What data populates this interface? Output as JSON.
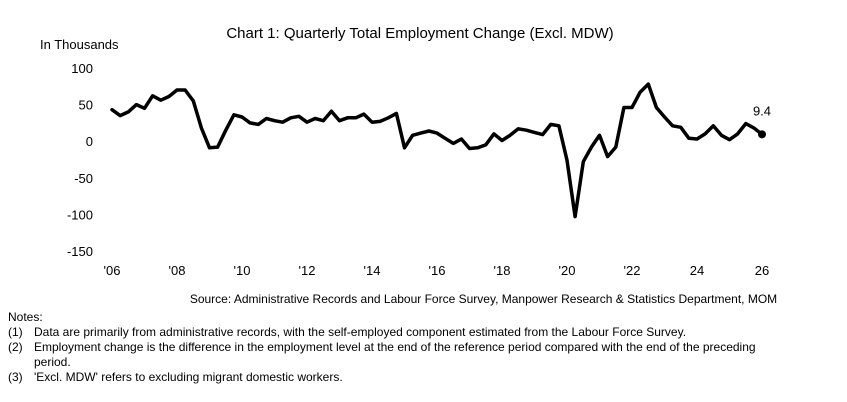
{
  "chart_data": {
    "type": "line",
    "title": "Chart 1: Quarterly Total Employment Change (Excl. MDW)",
    "ylabel": "In Thousands",
    "xlabel": "",
    "ylim": [
      -150,
      100
    ],
    "y_ticks": [
      100,
      50,
      0,
      -50,
      -100,
      -150
    ],
    "y_tick_labels": [
      "100",
      "50",
      "0",
      "-50",
      "-100",
      "-150"
    ],
    "x_tick_labels": [
      "'06",
      "'08",
      "'10",
      "'12",
      "'14",
      "'16",
      "'18",
      "'20",
      "'22",
      "24",
      "26"
    ],
    "grid": false,
    "series": [
      {
        "name": "",
        "color": "#000000",
        "x": [
          2006.0,
          2006.25,
          2006.5,
          2006.75,
          2007.0,
          2007.25,
          2007.5,
          2007.75,
          2008.0,
          2008.25,
          2008.5,
          2008.75,
          2009.0,
          2009.25,
          2009.5,
          2009.75,
          2010.0,
          2010.25,
          2010.5,
          2010.75,
          2011.0,
          2011.25,
          2011.5,
          2011.75,
          2012.0,
          2012.25,
          2012.5,
          2012.75,
          2013.0,
          2013.25,
          2013.5,
          2013.75,
          2014.0,
          2014.25,
          2014.5,
          2014.75,
          2015.0,
          2015.25,
          2015.5,
          2015.75,
          2016.0,
          2016.25,
          2016.5,
          2016.75,
          2017.0,
          2017.25,
          2017.5,
          2017.75,
          2018.0,
          2018.25,
          2018.5,
          2018.75,
          2019.0,
          2019.25,
          2019.5,
          2019.75,
          2020.0,
          2020.25,
          2020.5,
          2020.75,
          2021.0,
          2021.25,
          2021.5,
          2021.75,
          2022.0,
          2022.25,
          2022.5,
          2022.75,
          2023.0,
          2023.25,
          2023.5,
          2023.75,
          2024.0,
          2024.25,
          2024.5,
          2024.75,
          2025.0,
          2025.25,
          2025.5,
          2025.75,
          2026.0
        ],
        "values": [
          43,
          35,
          40,
          50,
          45,
          62,
          56,
          61,
          70,
          70,
          55,
          18,
          -9,
          -8,
          15,
          36,
          33,
          25,
          23,
          31,
          28,
          26,
          32,
          34,
          26,
          31,
          28,
          41,
          28,
          32,
          32,
          37,
          26,
          27,
          32,
          38,
          -9,
          8,
          11,
          14,
          11,
          4,
          -3,
          3,
          -10,
          -9,
          -5,
          10,
          1,
          8,
          17,
          15,
          12,
          9,
          23,
          21,
          -26,
          -103,
          -28,
          -8,
          8,
          -21,
          -8,
          46,
          46,
          67,
          78,
          46,
          33,
          21,
          19,
          4,
          3,
          10,
          21,
          8,
          2,
          10,
          24,
          18,
          9.4
        ]
      }
    ],
    "annotations": [
      {
        "label": "9.4"
      }
    ]
  },
  "source": "Source: Administrative Records and Labour Force Survey, Manpower Research & Statistics Department, MOM",
  "notes": {
    "heading": "Notes:",
    "items": [
      {
        "num": "(1)",
        "text": "Data are primarily from administrative records, with the self-employed component estimated from the Labour Force Survey."
      },
      {
        "num": "(2)",
        "text": "Employment change is the difference in the employment level at the end of the reference period compared with the end of the preceding period."
      },
      {
        "num": "(3)",
        "text": "'Excl. MDW' refers to excluding migrant domestic workers."
      }
    ]
  }
}
